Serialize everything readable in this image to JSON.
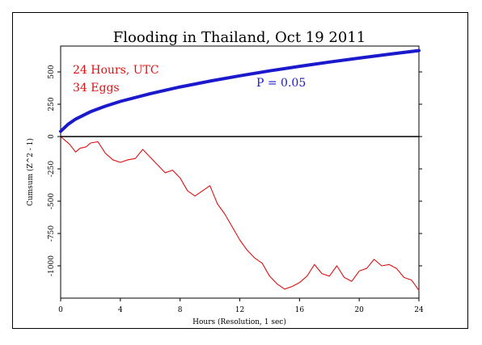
{
  "chart_data": {
    "type": "line",
    "title": "Flooding in Thailand, Oct 19 2011",
    "xlabel": "Hours (Resolution, 1 sec)",
    "ylabel": "Cumsum (Z^2 - 1)",
    "xlim": [
      0,
      24
    ],
    "ylim": [
      -1250,
      700
    ],
    "x_ticks": [
      0,
      4,
      8,
      12,
      16,
      20,
      24
    ],
    "y_ticks": [
      500,
      250,
      0,
      -250,
      -500,
      -750,
      -1000
    ],
    "annotations": [
      {
        "text": "24 Hours, UTC",
        "color": "#dd1111"
      },
      {
        "text": "34 Eggs",
        "color": "#dd1111"
      },
      {
        "text": "P = 0.05",
        "color": "#1a1acc"
      }
    ],
    "series": [
      {
        "role": "probability-envelope",
        "color": "#1a1acc",
        "x": [
          0,
          0.5,
          1,
          2,
          3,
          4,
          6,
          8,
          10,
          12,
          14,
          16,
          18,
          20,
          22,
          24
        ],
        "y": [
          40,
          95,
          135,
          192,
          235,
          272,
          332,
          384,
          429,
          470,
          508,
          543,
          576,
          607,
          637,
          665
        ]
      },
      {
        "role": "cumulative-deviation",
        "color": "#dd1111",
        "x": [
          0,
          0.3,
          0.6,
          1.0,
          1.3,
          1.7,
          2.0,
          2.5,
          3.0,
          3.5,
          4.0,
          4.5,
          5.0,
          5.5,
          6.0,
          6.5,
          7.0,
          7.5,
          8.0,
          8.5,
          9.0,
          9.5,
          10.0,
          10.5,
          11.0,
          11.5,
          12.0,
          12.5,
          13.0,
          13.5,
          14.0,
          14.5,
          15.0,
          15.5,
          16.0,
          16.5,
          17.0,
          17.5,
          18.0,
          18.5,
          19.0,
          19.5,
          20.0,
          20.5,
          21.0,
          21.5,
          22.0,
          22.5,
          23.0,
          23.5,
          24.0
        ],
        "y": [
          0,
          -30,
          -60,
          -120,
          -90,
          -80,
          -50,
          -40,
          -130,
          -180,
          -200,
          -180,
          -170,
          -100,
          -160,
          -220,
          -280,
          -260,
          -320,
          -420,
          -460,
          -420,
          -380,
          -520,
          -600,
          -700,
          -800,
          -880,
          -940,
          -980,
          -1080,
          -1140,
          -1180,
          -1160,
          -1130,
          -1080,
          -990,
          -1060,
          -1080,
          -1000,
          -1090,
          -1120,
          -1040,
          -1020,
          -950,
          -1000,
          -990,
          -1020,
          -1090,
          -1110,
          -1190
        ]
      },
      {
        "role": "baseline",
        "color": "#000000",
        "x": [
          0,
          24
        ],
        "y": [
          0,
          0
        ]
      }
    ],
    "grid": false,
    "legend": "none"
  }
}
